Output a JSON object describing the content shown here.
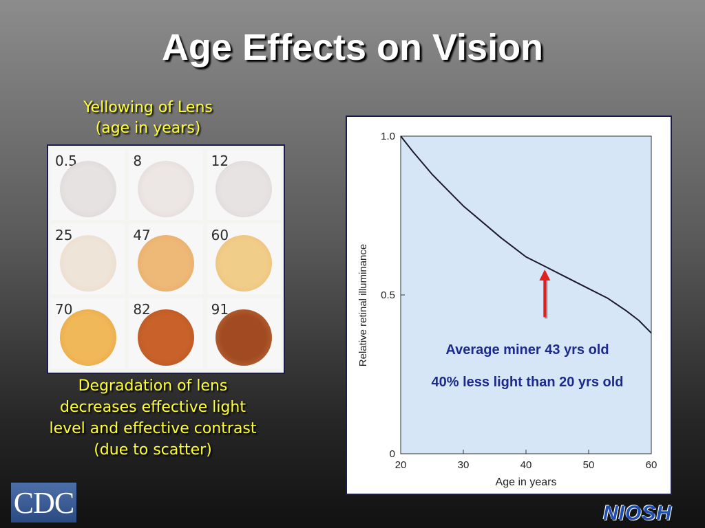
{
  "title": "Age Effects on Vision",
  "lens_panel": {
    "caption_line1": "Yellowing of Lens",
    "caption_line2": "(age in years)",
    "lenses": [
      {
        "age": "0.5",
        "color": "#e6e2e2",
        "edge": "#d8d2d2"
      },
      {
        "age": "8",
        "color": "#ece6e4",
        "edge": "#ddd4d2"
      },
      {
        "age": "12",
        "color": "#e8e3e3",
        "edge": "#d8d2d4"
      },
      {
        "age": "25",
        "color": "#efe4d8",
        "edge": "#e6d8c8"
      },
      {
        "age": "47",
        "color": "#eeb877",
        "edge": "#e5a864"
      },
      {
        "age": "60",
        "color": "#f1cd8a",
        "edge": "#e8bd72"
      },
      {
        "age": "70",
        "color": "#f1b859",
        "edge": "#e4a03e"
      },
      {
        "age": "82",
        "color": "#c8622a",
        "edge": "#b55222"
      },
      {
        "age": "91",
        "color": "#a24a22",
        "edge": "#c57942"
      }
    ]
  },
  "bottom_caption": {
    "line1": "Degradation of lens",
    "line2": "decreases effective light",
    "line3": "level and effective contrast",
    "line4": "(due to scatter)"
  },
  "logos": {
    "cdc": "CDC",
    "niosh": "NIOSH"
  },
  "chart_data": {
    "type": "line",
    "xlabel": "Age in years",
    "ylabel": "Relative retinal illuminance",
    "xlim": [
      20,
      60
    ],
    "ylim": [
      0,
      1.0
    ],
    "x_ticks": [
      20,
      30,
      40,
      50,
      60
    ],
    "y_ticks": [
      {
        "value": 0,
        "label": "0"
      },
      {
        "value": 0.5,
        "label": "0.5"
      },
      {
        "value": 1.0,
        "label": "1.0"
      }
    ],
    "grid": false,
    "plot_background": "#d6e6f6",
    "line_color": "#1a1a2a",
    "series": [
      {
        "x": [
          20,
          22,
          25,
          28,
          30,
          33,
          36,
          38,
          40,
          43,
          46,
          50,
          53,
          56,
          58,
          60
        ],
        "values": [
          1.0,
          0.95,
          0.88,
          0.82,
          0.78,
          0.73,
          0.68,
          0.65,
          0.62,
          0.59,
          0.56,
          0.52,
          0.49,
          0.45,
          0.42,
          0.38
        ]
      }
    ],
    "annotations": [
      {
        "line1": "Average miner 43 yrs old",
        "line2": "40% less light than 20 yrs old",
        "color": "#1c2a8c"
      }
    ],
    "arrow": {
      "x": 43,
      "y_from": 0.43,
      "y_to": 0.58,
      "color": "#e02020"
    }
  }
}
